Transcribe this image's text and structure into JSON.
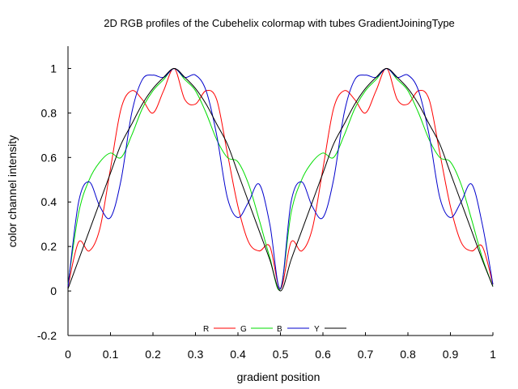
{
  "chart_data": {
    "type": "line",
    "title": "2D RGB profiles of the Cubehelix colormap with tubes GradientJoiningType",
    "xlabel": "gradient position",
    "ylabel": "color channel intensity",
    "xlim": [
      0,
      1
    ],
    "ylim": [
      -0.2,
      1.1
    ],
    "xticks": [
      "0",
      "0.1",
      "0.2",
      "0.3",
      "0.4",
      "0.5",
      "0.6",
      "0.7",
      "0.8",
      "0.9",
      "1"
    ],
    "yticks": [
      "-0.2",
      "0",
      "0.2",
      "0.4",
      "0.6",
      "0.8",
      "1"
    ],
    "grid": false,
    "legend": {
      "placement": "bottom-center",
      "orientation": "horizontal"
    },
    "x": [
      0,
      0.025,
      0.05,
      0.075,
      0.1,
      0.125,
      0.15,
      0.175,
      0.2,
      0.225,
      0.25,
      0.275,
      0.3,
      0.325,
      0.35,
      0.375,
      0.4,
      0.425,
      0.45,
      0.475,
      0.5,
      0.525,
      0.55,
      0.575,
      0.6,
      0.625,
      0.65,
      0.675,
      0.7,
      0.725,
      0.75,
      0.775,
      0.8,
      0.825,
      0.85,
      0.875,
      0.9,
      0.925,
      0.95,
      0.975,
      1
    ],
    "series": [
      {
        "name": "R",
        "color": "#ff0000",
        "values": [
          0.02,
          0.22,
          0.18,
          0.28,
          0.55,
          0.82,
          0.9,
          0.86,
          0.8,
          0.9,
          1.0,
          0.86,
          0.84,
          0.9,
          0.86,
          0.62,
          0.38,
          0.22,
          0.18,
          0.2,
          0.01,
          0.22,
          0.18,
          0.28,
          0.55,
          0.82,
          0.9,
          0.86,
          0.8,
          0.9,
          1.0,
          0.86,
          0.84,
          0.9,
          0.86,
          0.62,
          0.38,
          0.22,
          0.18,
          0.2,
          0.03
        ]
      },
      {
        "name": "G",
        "color": "#00dd00",
        "values": [
          0.03,
          0.35,
          0.5,
          0.58,
          0.62,
          0.6,
          0.7,
          0.82,
          0.9,
          0.95,
          1.0,
          0.95,
          0.9,
          0.8,
          0.68,
          0.6,
          0.58,
          0.48,
          0.32,
          0.15,
          0.01,
          0.35,
          0.5,
          0.58,
          0.62,
          0.6,
          0.7,
          0.82,
          0.9,
          0.95,
          1.0,
          0.95,
          0.9,
          0.8,
          0.68,
          0.6,
          0.58,
          0.48,
          0.32,
          0.15,
          0.02
        ]
      },
      {
        "name": "B",
        "color": "#0000cc",
        "values": [
          0.02,
          0.4,
          0.49,
          0.38,
          0.33,
          0.5,
          0.8,
          0.95,
          0.97,
          0.96,
          1.0,
          0.96,
          0.97,
          0.9,
          0.7,
          0.42,
          0.33,
          0.4,
          0.48,
          0.3,
          0.01,
          0.4,
          0.49,
          0.38,
          0.33,
          0.5,
          0.8,
          0.95,
          0.97,
          0.96,
          1.0,
          0.96,
          0.97,
          0.9,
          0.7,
          0.42,
          0.33,
          0.4,
          0.48,
          0.3,
          0.03
        ]
      },
      {
        "name": "Y",
        "color": "#000000",
        "values": [
          0.01,
          0.14,
          0.27,
          0.4,
          0.53,
          0.66,
          0.75,
          0.84,
          0.91,
          0.96,
          1.0,
          0.96,
          0.91,
          0.84,
          0.75,
          0.66,
          0.53,
          0.4,
          0.27,
          0.14,
          0.0,
          0.14,
          0.27,
          0.4,
          0.53,
          0.66,
          0.75,
          0.84,
          0.91,
          0.96,
          1.0,
          0.96,
          0.91,
          0.84,
          0.75,
          0.66,
          0.53,
          0.4,
          0.27,
          0.14,
          0.02
        ]
      }
    ]
  }
}
